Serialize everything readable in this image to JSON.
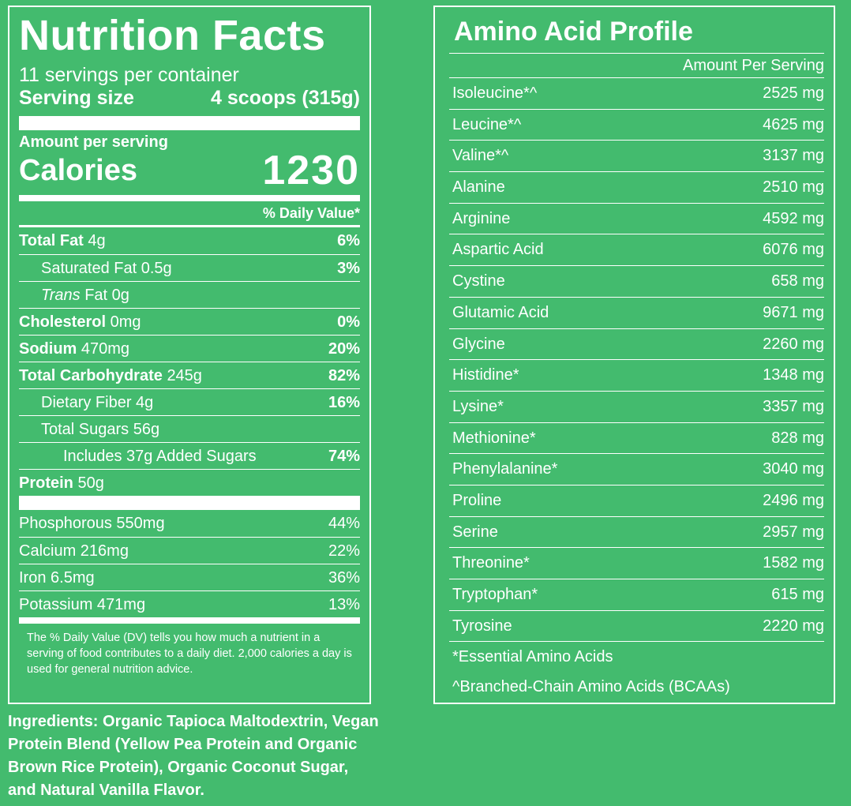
{
  "nutrition": {
    "title": "Nutrition Facts",
    "servings": "11 servings per container",
    "serving_size_label": "Serving size",
    "serving_size_value": "4 scoops (315g)",
    "amount_per_serving": "Amount per serving",
    "calories_label": "Calories",
    "calories_value": "1230",
    "dv_header": "% Daily Value*",
    "rows": [
      {
        "label": "Total Fat",
        "amount": "4g",
        "dv": "6%"
      },
      {
        "label": "Saturated Fat",
        "amount": "0.5g",
        "dv": "3%"
      },
      {
        "label": "Trans",
        "amount": "Fat 0g",
        "dv": ""
      },
      {
        "label": "Cholesterol",
        "amount": "0mg",
        "dv": "0%"
      },
      {
        "label": "Sodium",
        "amount": "470mg",
        "dv": "20%"
      },
      {
        "label": "Total Carbohydrate",
        "amount": "245g",
        "dv": "82%"
      },
      {
        "label": "Dietary Fiber",
        "amount": "4g",
        "dv": "16%"
      },
      {
        "label": "Total Sugars",
        "amount": "56g",
        "dv": ""
      },
      {
        "label": "Includes 37g Added Sugars",
        "amount": "",
        "dv": "74%"
      },
      {
        "label": "Protein",
        "amount": "50g",
        "dv": ""
      }
    ],
    "vitamins": [
      {
        "label": "Phosphorous 550mg",
        "dv": "44%"
      },
      {
        "label": "Calcium 216mg",
        "dv": "22%"
      },
      {
        "label": "Iron 6.5mg",
        "dv": "36%"
      },
      {
        "label": "Potassium 471mg",
        "dv": "13%"
      }
    ],
    "footnote": "The % Daily Value (DV) tells you how much a nutrient in a serving of food contributes to a daily diet. 2,000 calories a day is used for general nutrition advice."
  },
  "ingredients": "Ingredients: Organic Tapioca Maltodextrin, Vegan Protein Blend (Yellow Pea Protein and Organic Brown Rice Protein), Organic Coconut Sugar, and Natural Vanilla Flavor.",
  "amino": {
    "title": "Amino Acid Profile",
    "column_header": "Amount Per Serving",
    "rows": [
      {
        "name": "Isoleucine*^",
        "amount": "2525 mg"
      },
      {
        "name": "Leucine*^",
        "amount": "4625 mg"
      },
      {
        "name": "Valine*^",
        "amount": "3137 mg"
      },
      {
        "name": "Alanine",
        "amount": "2510 mg"
      },
      {
        "name": "Arginine",
        "amount": "4592 mg"
      },
      {
        "name": "Aspartic Acid",
        "amount": "6076 mg"
      },
      {
        "name": "Cystine",
        "amount": "658 mg"
      },
      {
        "name": "Glutamic Acid",
        "amount": "9671 mg"
      },
      {
        "name": "Glycine",
        "amount": "2260 mg"
      },
      {
        "name": "Histidine*",
        "amount": "1348 mg"
      },
      {
        "name": "Lysine*",
        "amount": "3357 mg"
      },
      {
        "name": "Methionine*",
        "amount": "828 mg"
      },
      {
        "name": "Phenylalanine*",
        "amount": "3040 mg"
      },
      {
        "name": "Proline",
        "amount": "2496 mg"
      },
      {
        "name": "Serine",
        "amount": "2957 mg"
      },
      {
        "name": "Threonine*",
        "amount": "1582 mg"
      },
      {
        "name": "Tryptophan*",
        "amount": "615 mg"
      },
      {
        "name": "Tyrosine",
        "amount": "2220 mg"
      }
    ],
    "note_essential": "*Essential Amino Acids",
    "note_bcaa": "^Branched-Chain Amino Acids (BCAAs)"
  },
  "colors": {
    "background": "#43bb6e",
    "text": "#ffffff"
  }
}
